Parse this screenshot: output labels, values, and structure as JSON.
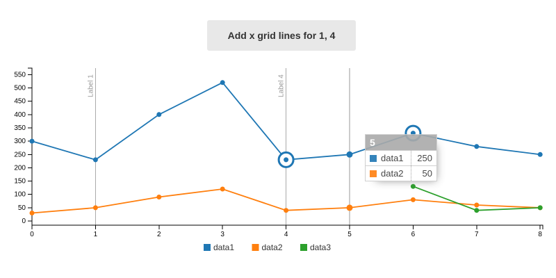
{
  "button": {
    "label": "Add x grid lines for 1, 4"
  },
  "tooltip": {
    "title": "5",
    "rows": [
      {
        "name": "data1",
        "value": "250",
        "color": "#1f77b4"
      },
      {
        "name": "data2",
        "value": "50",
        "color": "#ff7f0e"
      }
    ]
  },
  "chart_data": {
    "type": "line",
    "x": [
      0,
      1,
      2,
      3,
      4,
      5,
      6,
      7,
      8
    ],
    "series": [
      {
        "name": "data1",
        "color": "#1f77b4",
        "values": [
          300,
          230,
          400,
          520,
          230,
          250,
          330,
          280,
          250
        ]
      },
      {
        "name": "data2",
        "color": "#ff7f0e",
        "values": [
          30,
          50,
          90,
          120,
          40,
          50,
          80,
          60,
          50
        ]
      },
      {
        "name": "data3",
        "color": "#2ca02c",
        "values": [
          null,
          null,
          null,
          null,
          null,
          null,
          130,
          40,
          50
        ]
      }
    ],
    "x_ticks": [
      "0",
      "1",
      "2",
      "3",
      "4",
      "5",
      "6",
      "7",
      "8"
    ],
    "y_ticks": [
      "0",
      "50",
      "100",
      "150",
      "200",
      "250",
      "300",
      "350",
      "400",
      "450",
      "500",
      "550"
    ],
    "ylim": [
      0,
      570
    ],
    "grid": {
      "x_lines": [
        {
          "value": 1,
          "label": "Label 1"
        },
        {
          "value": 4,
          "label": "Label 4"
        }
      ],
      "focus_x": 5,
      "line_color": "#aaaaaa",
      "focus_color": "#999999",
      "label_color": "#999999"
    },
    "expanded_x": 5,
    "selected_points": [
      {
        "series": "data1",
        "x": 4
      },
      {
        "series": "data1",
        "x": 6
      }
    ],
    "legend": {
      "position": "bottom",
      "items": [
        "data1",
        "data2",
        "data3"
      ]
    },
    "axis_color": "#000000"
  }
}
